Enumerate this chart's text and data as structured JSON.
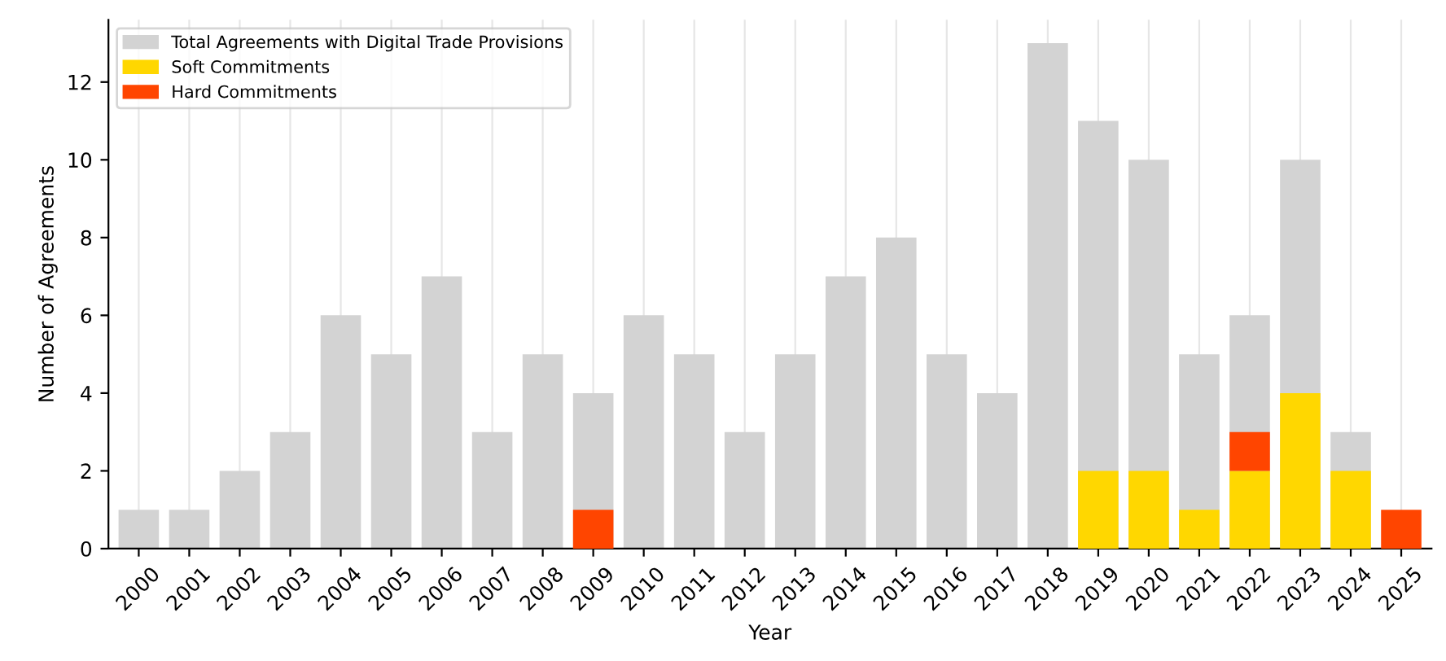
{
  "chart_data": {
    "type": "bar",
    "xlabel": "Year",
    "ylabel": "Number of Agreements",
    "categories": [
      "2000",
      "2001",
      "2002",
      "2003",
      "2004",
      "2005",
      "2006",
      "2007",
      "2008",
      "2009",
      "2010",
      "2011",
      "2012",
      "2013",
      "2014",
      "2015",
      "2016",
      "2017",
      "2018",
      "2019",
      "2020",
      "2021",
      "2022",
      "2023",
      "2024",
      "2025"
    ],
    "series": [
      {
        "name": "Total Agreements with Digital Trade Provisions",
        "color": "#d3d3d3",
        "values": [
          1,
          1,
          2,
          3,
          6,
          5,
          7,
          3,
          5,
          4,
          6,
          5,
          3,
          5,
          7,
          8,
          5,
          4,
          13,
          11,
          10,
          5,
          6,
          10,
          3,
          null
        ]
      },
      {
        "name": "Soft Commitments",
        "color": "#ffd700",
        "values": [
          null,
          null,
          null,
          null,
          null,
          null,
          null,
          null,
          null,
          null,
          null,
          null,
          null,
          null,
          null,
          null,
          null,
          null,
          null,
          2,
          2,
          1,
          2,
          4,
          2,
          null
        ]
      },
      {
        "name": "Hard Commitments",
        "color": "#ff4500",
        "base": [
          null,
          null,
          null,
          null,
          null,
          null,
          null,
          null,
          null,
          0,
          null,
          null,
          null,
          null,
          null,
          null,
          null,
          null,
          null,
          null,
          null,
          null,
          2,
          null,
          null,
          0
        ],
        "values": [
          null,
          null,
          null,
          null,
          null,
          null,
          null,
          null,
          null,
          1,
          null,
          null,
          null,
          null,
          null,
          null,
          null,
          null,
          null,
          null,
          null,
          null,
          1,
          null,
          null,
          1
        ]
      }
    ],
    "ylim": [
      0,
      13.6
    ],
    "yticks": [
      0,
      2,
      4,
      6,
      8,
      10,
      12
    ],
    "grid": "x",
    "legend": "top left"
  }
}
